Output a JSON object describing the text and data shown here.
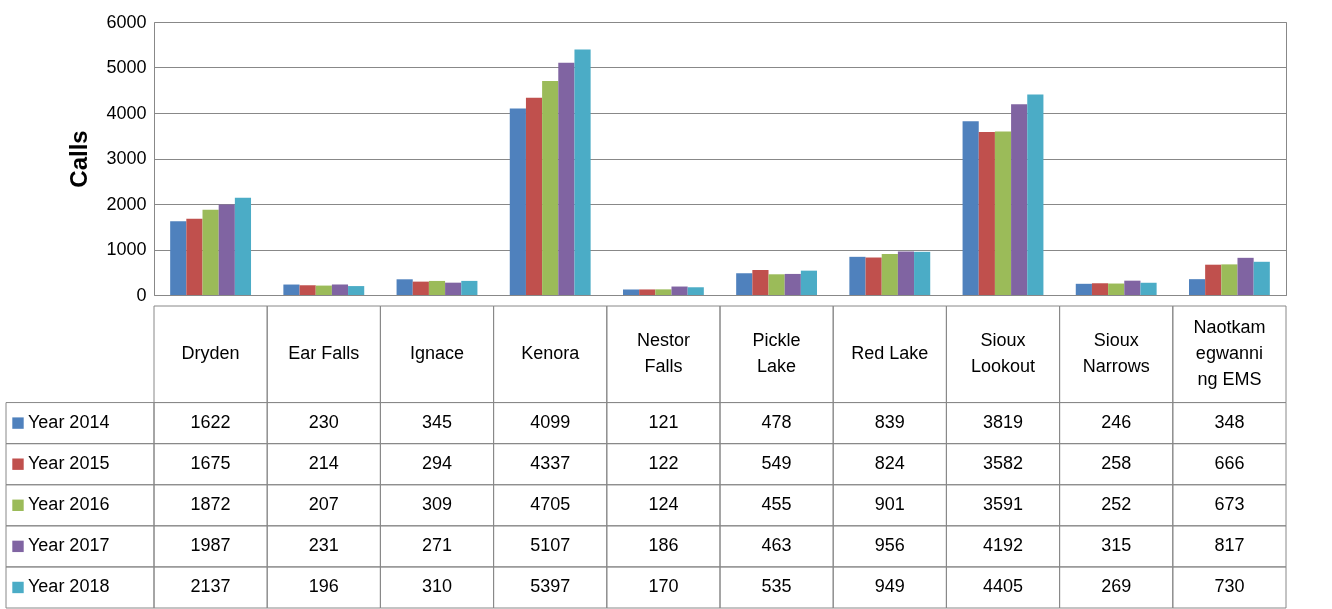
{
  "chart_data": {
    "type": "bar",
    "ylabel": "Calls",
    "categories": [
      "Dryden",
      "Ear Falls",
      "Ignace",
      "Kenora",
      "Nestor Falls",
      "Pickle Lake",
      "Red Lake",
      "Sioux Lookout",
      "Sioux Narrows",
      "Naotkamegwanning EMS"
    ],
    "series": [
      {
        "name": "Year 2014",
        "color": "#4f81bd",
        "values": [
          1622,
          230,
          345,
          4099,
          121,
          478,
          839,
          3819,
          246,
          348
        ]
      },
      {
        "name": "Year 2015",
        "color": "#c0504d",
        "values": [
          1675,
          214,
          294,
          4337,
          122,
          549,
          824,
          3582,
          258,
          666
        ]
      },
      {
        "name": "Year 2016",
        "color": "#9bbb59",
        "values": [
          1872,
          207,
          309,
          4705,
          124,
          455,
          901,
          3591,
          252,
          673
        ]
      },
      {
        "name": "Year 2017",
        "color": "#8064a2",
        "values": [
          1987,
          231,
          271,
          5107,
          186,
          463,
          956,
          4192,
          315,
          817
        ]
      },
      {
        "name": "Year 2018",
        "color": "#4bacc6",
        "values": [
          2137,
          196,
          310,
          5397,
          170,
          535,
          949,
          4405,
          269,
          730
        ]
      }
    ],
    "ylim": [
      0,
      6000
    ],
    "yticks": [
      0,
      1000,
      2000,
      3000,
      4000,
      5000,
      6000
    ],
    "grid": "y",
    "legend": "bottom",
    "data_labels": true
  }
}
